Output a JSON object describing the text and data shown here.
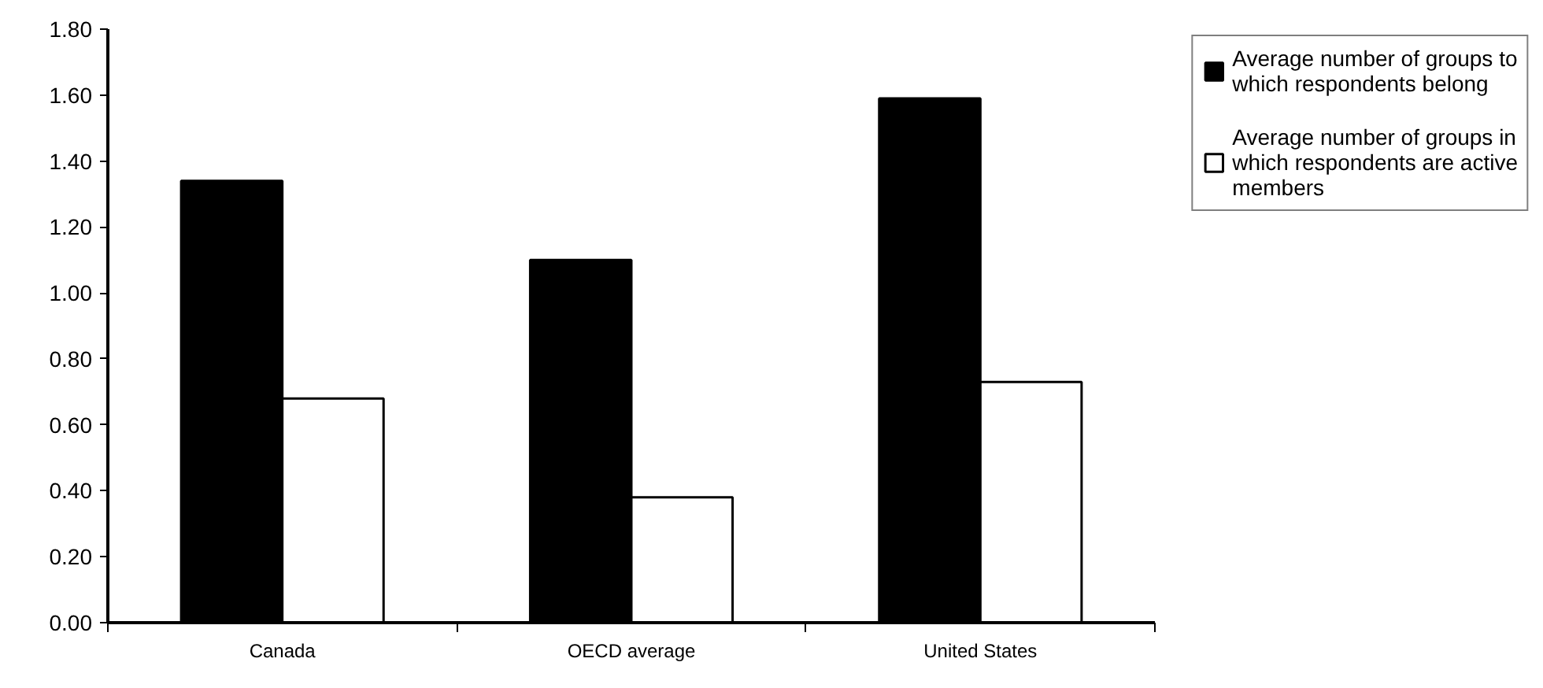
{
  "chart_data": {
    "type": "bar",
    "categories": [
      "Canada",
      "OECD average",
      "United States"
    ],
    "series": [
      {
        "name": "Average number of groups to which respondents belong",
        "color": "#000000",
        "values": [
          1.34,
          1.1,
          1.59
        ]
      },
      {
        "name": "Average number of groups in which respondents are active members",
        "color": "#ffffff",
        "values": [
          0.68,
          0.38,
          0.73
        ]
      }
    ],
    "ylim": [
      0,
      1.8
    ],
    "yticks": [
      {
        "value": 0,
        "label": "0.00"
      },
      {
        "value": 0.2,
        "label": "0.20"
      },
      {
        "value": 0.4,
        "label": "0.40"
      },
      {
        "value": 0.6,
        "label": "0.60"
      },
      {
        "value": 0.8,
        "label": "0.80"
      },
      {
        "value": 1.0,
        "label": "1.00"
      },
      {
        "value": 1.2,
        "label": "1.20"
      },
      {
        "value": 1.4,
        "label": "1.40"
      },
      {
        "value": 1.6,
        "label": "1.60"
      },
      {
        "value": 1.8,
        "label": "1.80"
      }
    ],
    "grid": false,
    "legend": "top right"
  }
}
